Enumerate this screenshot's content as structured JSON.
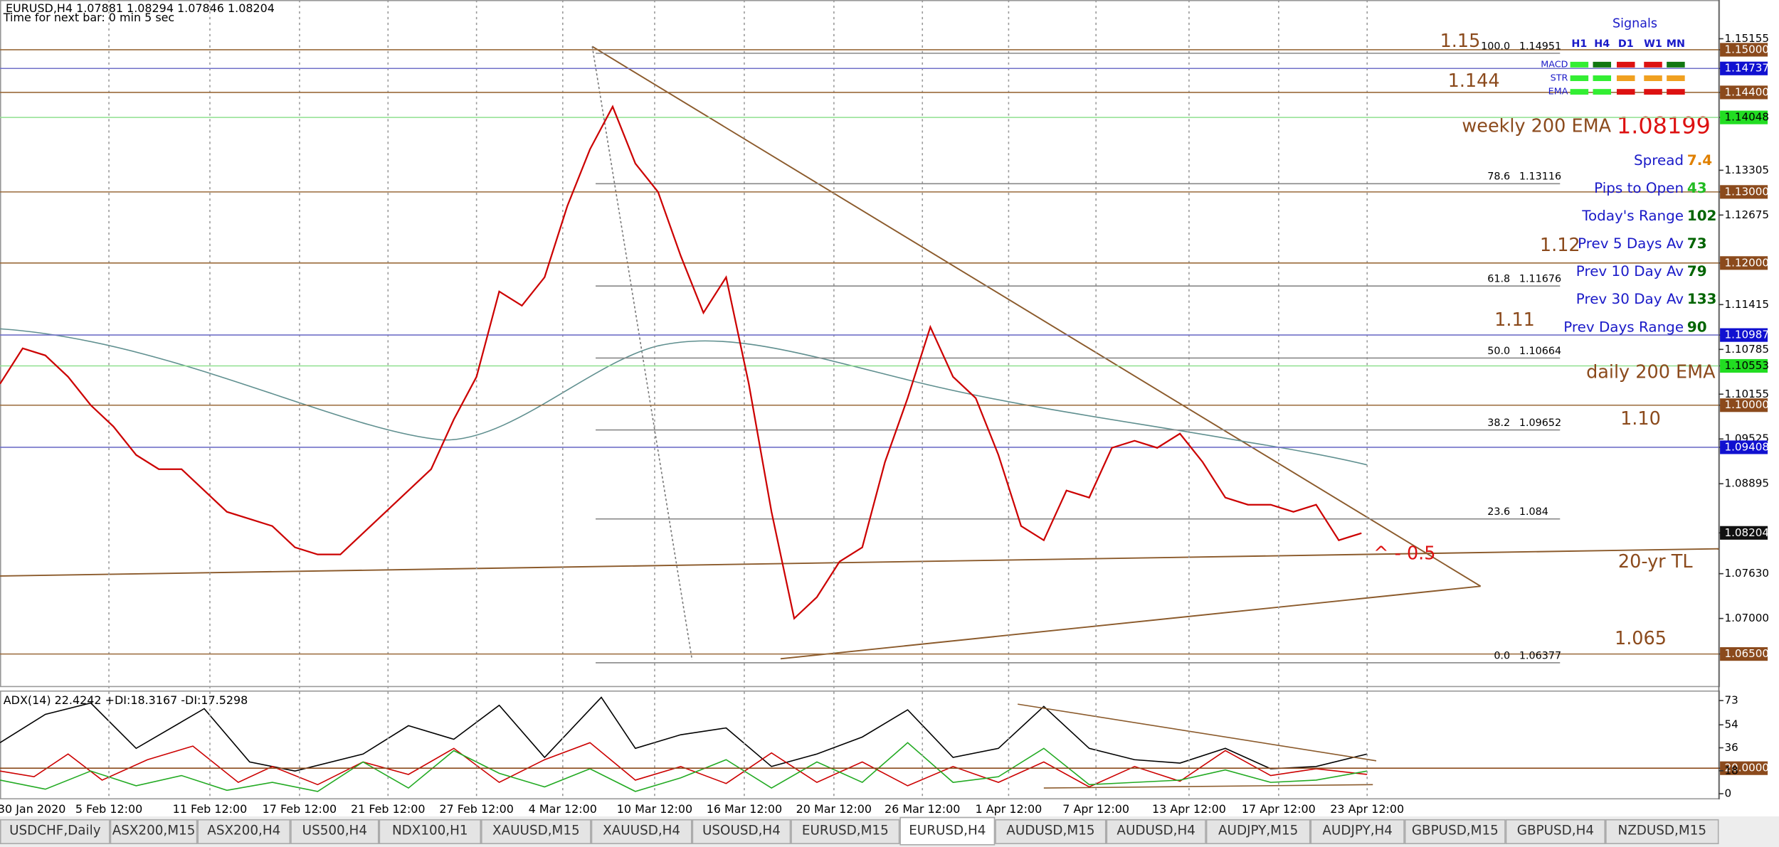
{
  "header": {
    "symbol_line": "EURUSD,H4  1.07881 1.08294 1.07846 1.08204",
    "timer": "Time for next bar: 0 min 5 sec"
  },
  "price_axis": {
    "ylim": [
      1.0605,
      1.157
    ],
    "ticks": [
      {
        "value": 1.15155,
        "label": "1.15155"
      },
      {
        "value": 1.15,
        "label": "1.15000",
        "box": "#8b4a1c"
      },
      {
        "value": 1.14737,
        "label": "1.14737",
        "box": "#1010d0"
      },
      {
        "value": 1.144,
        "label": "1.14400",
        "box": "#8b4a1c"
      },
      {
        "value": 1.14048,
        "label": "1.14048",
        "box": "#22dd22"
      },
      {
        "value": 1.13305,
        "label": "1.13305"
      },
      {
        "value": 1.13,
        "label": "1.13000",
        "box": "#8b4a1c"
      },
      {
        "value": 1.12675,
        "label": "1.12675"
      },
      {
        "value": 1.12,
        "label": "1.12000",
        "box": "#8b4a1c"
      },
      {
        "value": 1.11415,
        "label": "1.11415"
      },
      {
        "value": 1.10987,
        "label": "1.10987",
        "box": "#1010d0"
      },
      {
        "value": 1.10785,
        "label": "1.10785"
      },
      {
        "value": 1.10553,
        "label": "1.10553",
        "box": "#22dd22"
      },
      {
        "value": 1.10155,
        "label": "1.10155"
      },
      {
        "value": 1.1,
        "label": "1.10000",
        "box": "#8b4a1c"
      },
      {
        "value": 1.09525,
        "label": "1.09525"
      },
      {
        "value": 1.09408,
        "label": "1.09408",
        "box": "#1010d0"
      },
      {
        "value": 1.08895,
        "label": "1.08895"
      },
      {
        "value": 1.08204,
        "label": "1.08204",
        "box": "#111111"
      },
      {
        "value": 1.0763,
        "label": "1.07630"
      },
      {
        "value": 1.07,
        "label": "1.07000"
      },
      {
        "value": 1.065,
        "label": "1.06500",
        "box": "#8b4a1c"
      }
    ]
  },
  "fib": [
    {
      "level": {
        "value": 100,
        "label": "100.0"
      },
      "price": 1.14951
    },
    {
      "level": 78.6,
      "price": 1.13116
    },
    {
      "level": 61.8,
      "price": 1.11676
    },
    {
      "level": {
        "value": 50,
        "label": "50.0"
      },
      "price": 1.10664
    },
    {
      "level": 38.2,
      "price": 1.09652
    },
    {
      "level": 23.6,
      "price": 1.084
    },
    {
      "level": {
        "value": 0,
        "label": "0.0"
      },
      "price": 1.06377
    }
  ],
  "annotations": [
    "1.15",
    "1.144",
    "1.12",
    "1.11",
    "daily 200 EMA",
    "1.10",
    "20-yr TL",
    "^ - 0.5",
    "1.065"
  ],
  "weekly_ema": {
    "label": "weekly 200 EMA",
    "value": 1.08199
  },
  "info": [
    {
      "label": "Spread",
      "value": 7.4,
      "color": "#e08000"
    },
    {
      "label": "Pips to Open",
      "value": 43,
      "color": "#22bb22"
    },
    {
      "label": "Today's Range",
      "value": 102,
      "color": "#006400"
    },
    {
      "label": "Prev 5 Days Av",
      "value": 73,
      "color": "#006400"
    },
    {
      "label": "Prev 10 Day Av",
      "value": 79,
      "color": "#006400"
    },
    {
      "label": "Prev 30 Day Av",
      "value": 133,
      "color": "#006400"
    },
    {
      "label": "Prev Days Range",
      "value": 90,
      "color": "#006400"
    }
  ],
  "signals": {
    "title": "Signals",
    "columns": [
      "H1",
      "H4",
      "D1",
      "W1",
      "MN"
    ],
    "rows": [
      {
        "name": "MACD",
        "colors": [
          "#33ee33",
          "#117711",
          "#dd1111",
          "#dd1111",
          "#117711"
        ]
      },
      {
        "name": "STR",
        "colors": [
          "#33ee33",
          "#33ee33",
          "#f0a020",
          "#f0a020",
          "#f0a020"
        ]
      },
      {
        "name": "EMA",
        "colors": [
          "#33ee33",
          "#33ee33",
          "#dd1111",
          "#dd1111",
          "#dd1111"
        ]
      }
    ]
  },
  "price_series": {
    "color": "#cc0000",
    "values": [
      1.103,
      1.108,
      1.107,
      1.104,
      1.1,
      1.097,
      1.093,
      1.091,
      1.091,
      1.088,
      1.085,
      1.084,
      1.083,
      1.08,
      1.079,
      1.079,
      1.082,
      1.085,
      1.088,
      1.091,
      1.098,
      1.104,
      1.116,
      1.114,
      1.118,
      1.128,
      1.136,
      1.142,
      1.134,
      1.13,
      1.121,
      1.113,
      1.118,
      1.103,
      1.085,
      1.07,
      1.073,
      1.078,
      1.08,
      1.092,
      1.101,
      1.111,
      1.104,
      1.101,
      1.093,
      1.083,
      1.081,
      1.088,
      1.087,
      1.094,
      1.095,
      1.094,
      1.096,
      1.092,
      1.087,
      1.086,
      1.086,
      1.085,
      1.086,
      1.081,
      1.082
    ]
  },
  "adx": {
    "label": "ADX(14) 22.4242 +DI:18.3167 -DI:17.5298",
    "ylim": [
      0,
      80
    ],
    "ticks": [
      73,
      54,
      36,
      {
        "value": 20,
        "label": "20.0000",
        "box": true
      },
      18,
      0
    ]
  },
  "time_axis": [
    "30 Jan 2020",
    "5 Feb 12:00",
    "11 Feb 12:00",
    "17 Feb 12:00",
    "21 Feb 12:00",
    "27 Feb 12:00",
    "4 Mar 12:00",
    "10 Mar 12:00",
    "16 Mar 12:00",
    "20 Mar 12:00",
    "26 Mar 12:00",
    "1 Apr 12:00",
    "7 Apr 12:00",
    "13 Apr 12:00",
    "17 Apr 12:00",
    "23 Apr 12:00"
  ],
  "tabs": {
    "items": [
      "USDCHF,Daily",
      "ASX200,M15",
      "ASX200,H4",
      "US500,H4",
      "NDX100,H1",
      "XAUUSD,M15",
      "XAUUSD,H4",
      "USOUSD,H4",
      "EURUSD,M15",
      "EURUSD,H4",
      "AUDUSD,M15",
      "AUDUSD,H4",
      "AUDJPY,M15",
      "AUDJPY,H4",
      "GBPUSD,M15",
      "GBPUSD,H4",
      "NZDUSD,M15"
    ],
    "active": 9
  }
}
